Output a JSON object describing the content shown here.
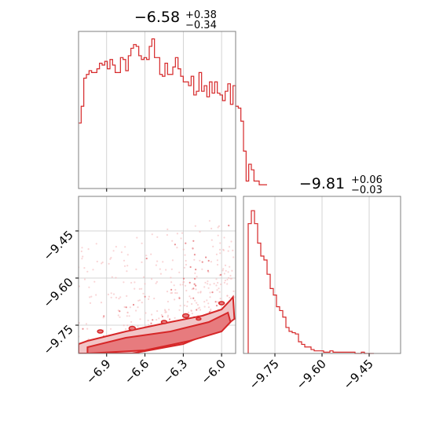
{
  "colors": {
    "accent": "#d62728",
    "fill_light": "#f2c4c6",
    "grid": "#c8c8c8",
    "frame": "#7f7f7f"
  },
  "chart_data": [
    {
      "type": "bar",
      "panel": "top-left marginal histogram",
      "title": {
        "main": "−6.58",
        "upper": "+0.38",
        "lower": "−0.34"
      },
      "parameter": {
        "median": -6.58,
        "plus": 0.38,
        "minus": 0.34
      },
      "x_range": [
        -7.12,
        -5.89
      ],
      "xticks": [
        -6.9,
        -6.6,
        -6.3,
        -6.0
      ],
      "grid": true,
      "bin_edges_start": -7.12,
      "bin_width": 0.0205,
      "counts": [
        35,
        44,
        59,
        61,
        63,
        62,
        62,
        64,
        67,
        66,
        68,
        64,
        69,
        66,
        62,
        62,
        70,
        69,
        63,
        71,
        75,
        77,
        76,
        71,
        69,
        70,
        69,
        76,
        80,
        70,
        70,
        61,
        60,
        67,
        61,
        61,
        65,
        70,
        64,
        60,
        57,
        57,
        55,
        60,
        50,
        52,
        62,
        52,
        55,
        49,
        57,
        51,
        57,
        51,
        50,
        47,
        52,
        56,
        45,
        55,
        44,
        43,
        36,
        20,
        4,
        13,
        10,
        4,
        4,
        2,
        2,
        2
      ]
    },
    {
      "type": "bar",
      "panel": "bottom-right marginal histogram",
      "title": {
        "main": "−9.81",
        "upper": "+0.06",
        "lower": "−0.03"
      },
      "parameter": {
        "median": -9.81,
        "plus": 0.06,
        "minus": 0.03
      },
      "x_range": [
        -9.85,
        -9.35
      ],
      "xticks": [
        -9.75,
        -9.6,
        -9.45
      ],
      "xtick_labels": [
        "−9.75",
        "−9.60",
        "−9.45"
      ],
      "grid": true,
      "bin_edges_start": -9.835,
      "bin_width": 0.01,
      "counts": [
        100,
        110,
        100,
        85,
        75,
        72,
        61,
        50,
        45,
        36,
        33,
        28,
        20,
        17,
        16,
        15,
        9,
        7,
        5,
        5,
        3,
        2,
        2,
        2,
        1,
        1,
        2,
        1,
        1,
        1,
        1,
        1,
        1,
        1,
        0,
        0,
        1,
        0,
        0,
        0
      ]
    },
    {
      "type": "scatter",
      "panel": "bottom-left 2D density",
      "x_range": [
        -7.12,
        -5.89
      ],
      "y_range": [
        -9.84,
        -9.34
      ],
      "xticks": [
        -6.9,
        -6.6,
        -6.3,
        -6.0
      ],
      "yticks": [
        -9.45,
        -9.6,
        -9.75
      ],
      "ytick_labels": [
        "−9.45",
        "−9.60",
        "−9.75"
      ],
      "grid": true,
      "density": "contours 1σ and 2σ with scattered samples outside",
      "outer_contour": [
        [
          -7.12,
          -9.84
        ],
        [
          -6.7,
          -9.84
        ],
        [
          -6.3,
          -9.81
        ],
        [
          -6.0,
          -9.76
        ],
        [
          -5.9,
          -9.73
        ],
        [
          -5.91,
          -9.66
        ],
        [
          -5.93,
          -9.67
        ],
        [
          -6.0,
          -9.7
        ],
        [
          -6.15,
          -9.72
        ],
        [
          -6.4,
          -9.74
        ],
        [
          -6.75,
          -9.77
        ],
        [
          -7.05,
          -9.8
        ],
        [
          -7.12,
          -9.81
        ]
      ],
      "inner_contour": [
        [
          -7.05,
          -9.84
        ],
        [
          -6.6,
          -9.83
        ],
        [
          -6.25,
          -9.8
        ],
        [
          -6.0,
          -9.77
        ],
        [
          -5.93,
          -9.74
        ],
        [
          -5.95,
          -9.71
        ],
        [
          -6.1,
          -9.74
        ],
        [
          -6.4,
          -9.77
        ],
        [
          -6.75,
          -9.79
        ],
        [
          -7.05,
          -9.82
        ]
      ]
    }
  ]
}
